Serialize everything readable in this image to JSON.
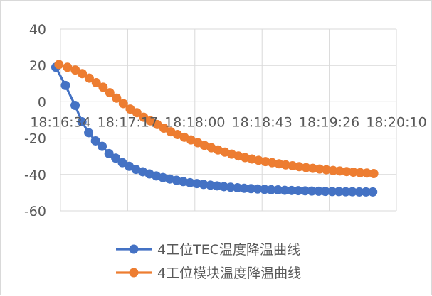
{
  "chart_data": {
    "type": "line",
    "title": "",
    "xlabel": "",
    "ylabel": "",
    "x_tick_labels": [
      "18:16:34",
      "18:17:17",
      "18:18:00",
      "18:18:43",
      "18:19:26",
      "18:20:10"
    ],
    "y_ticks": [
      40,
      20,
      0,
      -20,
      -40,
      -60
    ],
    "y_tick_labels": [
      "40",
      "20",
      "0",
      "-20",
      "-40",
      "-60"
    ],
    "ylim": [
      -60,
      40
    ],
    "x_range_seconds_from_first_tick": [
      0,
      216
    ],
    "grid": true,
    "legend_position": "bottom",
    "series": [
      {
        "name": "4工位TEC温度降温曲线",
        "color": "#4472C4",
        "points": [
          [
            -3,
            19
          ],
          [
            3.2,
            9
          ],
          [
            9.4,
            -2
          ],
          [
            13.8,
            -11
          ],
          [
            18.1,
            -17
          ],
          [
            22.5,
            -21.5
          ],
          [
            26.8,
            -24.5
          ],
          [
            31.2,
            -28.5
          ],
          [
            35.5,
            -31
          ],
          [
            39.8,
            -33.5
          ],
          [
            44.2,
            -35.5
          ],
          [
            48.5,
            -37.2
          ],
          [
            52.9,
            -38.5
          ],
          [
            57.2,
            -39.7
          ],
          [
            61.6,
            -40.8
          ],
          [
            65.9,
            -41.7
          ],
          [
            70.3,
            -42.5
          ],
          [
            74.6,
            -43.2
          ],
          [
            79,
            -43.9
          ],
          [
            83.3,
            -44.5
          ],
          [
            87.7,
            -45
          ],
          [
            92,
            -45.5
          ],
          [
            96.4,
            -45.9
          ],
          [
            100.7,
            -46.3
          ],
          [
            105.1,
            -46.7
          ],
          [
            109.4,
            -47
          ],
          [
            113.8,
            -47.3
          ],
          [
            118.1,
            -47.6
          ],
          [
            122.5,
            -47.8
          ],
          [
            126.8,
            -48
          ],
          [
            131.2,
            -48.2
          ],
          [
            135.5,
            -48.4
          ],
          [
            139.9,
            -48.5
          ],
          [
            144.2,
            -48.7
          ],
          [
            148.6,
            -48.8
          ],
          [
            152.9,
            -48.9
          ],
          [
            157.3,
            -49
          ],
          [
            161.6,
            -49.1
          ],
          [
            166,
            -49.2
          ],
          [
            170.3,
            -49.3
          ],
          [
            174.7,
            -49.4
          ],
          [
            179,
            -49.4
          ],
          [
            183.4,
            -49.5
          ],
          [
            187.7,
            -49.5
          ],
          [
            192.1,
            -49.6
          ],
          [
            196.4,
            -49.6
          ],
          [
            200.8,
            -49.6
          ]
        ]
      },
      {
        "name": "4工位模块温度降温曲线",
        "color": "#ED7D31",
        "points": [
          [
            -1,
            20.5
          ],
          [
            4.5,
            19
          ],
          [
            9.5,
            17.5
          ],
          [
            14,
            15.5
          ],
          [
            18.5,
            13
          ],
          [
            23,
            10.5
          ],
          [
            27.4,
            8
          ],
          [
            31.7,
            5
          ],
          [
            36.1,
            2
          ],
          [
            40.4,
            -1
          ],
          [
            44.8,
            -4
          ],
          [
            49.1,
            -6
          ],
          [
            53.5,
            -8.5
          ],
          [
            57.8,
            -10.5
          ],
          [
            62.2,
            -12.5
          ],
          [
            66.5,
            -14.5
          ],
          [
            70.9,
            -16.5
          ],
          [
            75.2,
            -18
          ],
          [
            79.6,
            -19.5
          ],
          [
            83.9,
            -21
          ],
          [
            88.3,
            -22.5
          ],
          [
            92.6,
            -24
          ],
          [
            97,
            -25.3
          ],
          [
            101.3,
            -26.5
          ],
          [
            105.7,
            -27.7
          ],
          [
            110,
            -28.8
          ],
          [
            114.4,
            -29.8
          ],
          [
            118.7,
            -30.7
          ],
          [
            123.1,
            -31.5
          ],
          [
            127.4,
            -32.2
          ],
          [
            131.8,
            -32.9
          ],
          [
            136.1,
            -33.5
          ],
          [
            140.5,
            -34.1
          ],
          [
            144.8,
            -34.7
          ],
          [
            149.2,
            -35.2
          ],
          [
            153.5,
            -35.7
          ],
          [
            157.9,
            -36.2
          ],
          [
            162.2,
            -36.6
          ],
          [
            166.6,
            -37
          ],
          [
            170.9,
            -37.4
          ],
          [
            175.3,
            -37.8
          ],
          [
            179.6,
            -38.1
          ],
          [
            184,
            -38.4
          ],
          [
            188.3,
            -38.7
          ],
          [
            192.7,
            -39
          ],
          [
            197,
            -39.2
          ],
          [
            201.4,
            -39.5
          ]
        ]
      }
    ]
  }
}
